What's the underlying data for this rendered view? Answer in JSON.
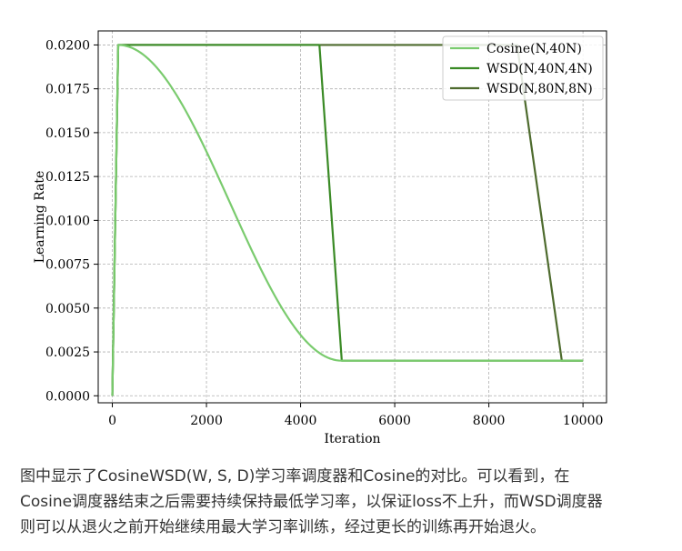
{
  "chart_data": {
    "type": "line",
    "xlabel": "Iteration",
    "ylabel": "Learning Rate",
    "xlim": [
      -300,
      10500
    ],
    "ylim": [
      -0.0004,
      0.0208
    ],
    "xticks": [
      0,
      2000,
      4000,
      6000,
      8000,
      10000
    ],
    "xtick_labels": [
      "0",
      "2000",
      "4000",
      "6000",
      "8000",
      "10000"
    ],
    "yticks": [
      0.0,
      0.0025,
      0.005,
      0.0075,
      0.01,
      0.0125,
      0.015,
      0.0175,
      0.02
    ],
    "ytick_labels": [
      "0.0000",
      "0.0025",
      "0.0050",
      "0.0075",
      "0.0100",
      "0.0125",
      "0.0150",
      "0.0175",
      "0.0200"
    ],
    "grid": true,
    "legend_position": "top-right",
    "series": [
      {
        "name": "Cosine(N,40N)",
        "color": "#7acb6e",
        "shape": "cosine",
        "x": [
          0,
          125,
          4875,
          10000
        ],
        "y": [
          0.0,
          0.02,
          0.002,
          0.002
        ]
      },
      {
        "name": "WSD(N,40N,4N)",
        "color": "#3a8a25",
        "x": [
          0,
          125,
          4400,
          4875,
          10000
        ],
        "y": [
          0.0,
          0.02,
          0.02,
          0.002,
          0.002
        ]
      },
      {
        "name": "WSD(N,80N,8N)",
        "color": "#4e6b2e",
        "x": [
          0,
          125,
          8600,
          9550,
          10000
        ],
        "y": [
          0.0,
          0.02,
          0.02,
          0.002,
          0.002
        ]
      }
    ]
  },
  "caption": {
    "line1": "图中显示了CosineWSD(W, S, D)学习率调度器和Cosine的对比。可以看到，在",
    "line2": "Cosine调度器结束之后需要持续保持最低学习率，以保证loss不上升，而WSD调度器",
    "line3": "则可以从退火之前开始继续用最大学习率训练，经过更长的训练再开始退火。"
  }
}
